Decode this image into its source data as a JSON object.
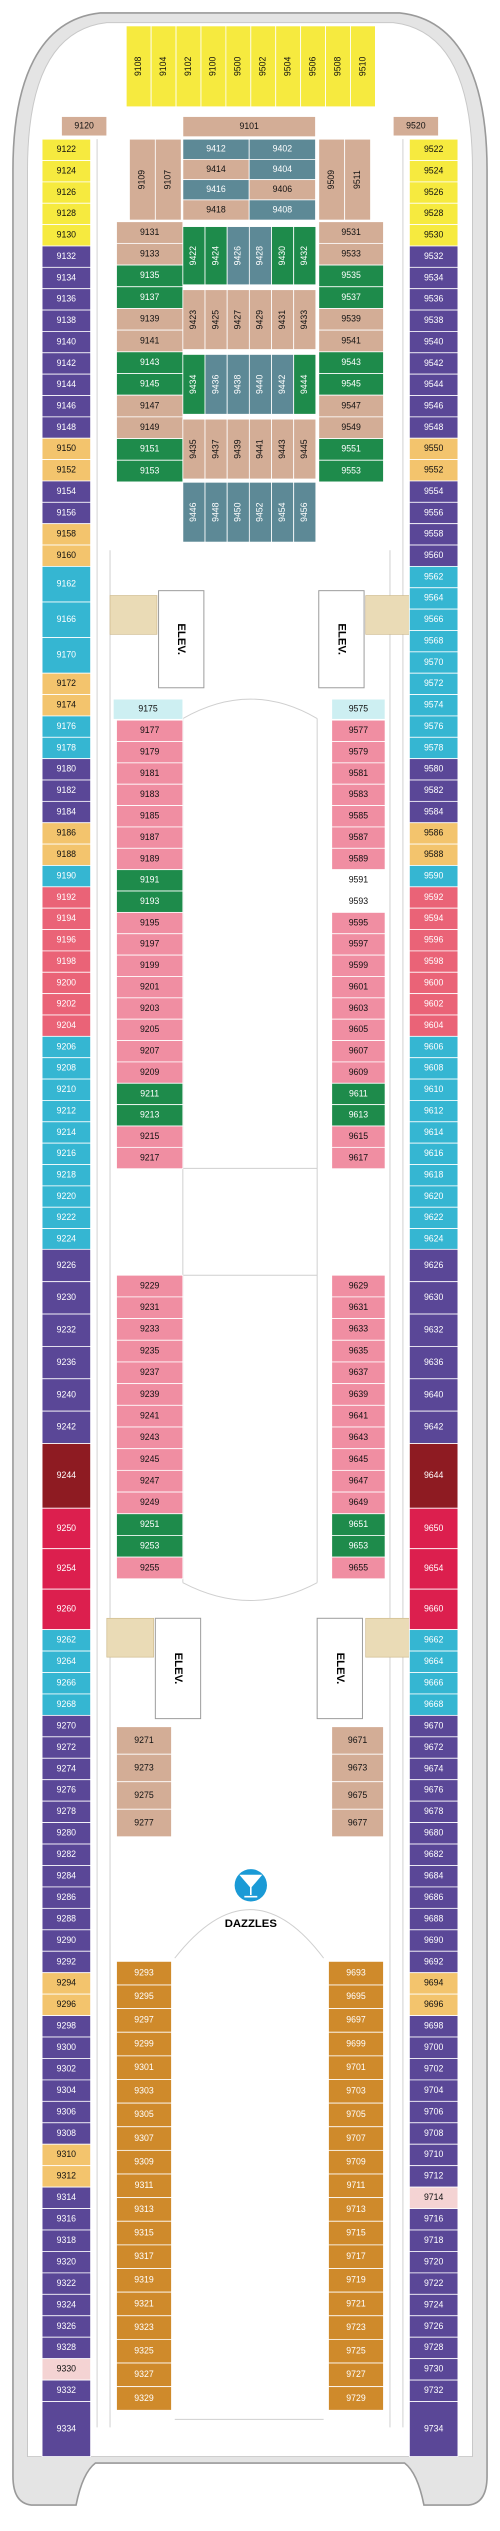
{
  "sections": [
    {
      "blocks": [
        {
          "color": "#f6ea3f",
          "cabins": [
            "9108",
            "9104",
            "9102",
            "9100",
            "9500",
            "9502",
            "9504",
            "9506",
            "9508",
            "9510"
          ]
        }
      ]
    },
    {
      "blocks": [
        {
          "color": "#d3ad96",
          "cabins": [
            "9120"
          ]
        }
      ]
    },
    {
      "blocks": [
        {
          "color": "#d3ad96",
          "cabins": [
            "9520"
          ]
        }
      ]
    },
    {
      "blocks": [
        {
          "color": "#d3ad96",
          "cabins": [
            "9101"
          ]
        }
      ]
    },
    {
      "blocks": [
        {
          "color": "#d3ad96",
          "cabins": [
            "9109",
            "9107"
          ]
        }
      ]
    },
    {
      "blocks": [
        {
          "color": "#d3ad96",
          "cabins": [
            "9509",
            "9511"
          ]
        }
      ]
    },
    {
      "blocks": [
        {
          "color": "#5d8996",
          "cabins": [
            "9412"
          ]
        },
        {
          "color": "#d3ad96",
          "cabins": [
            "9414"
          ]
        },
        {
          "color": "#5d8996",
          "cabins": [
            "9416"
          ]
        },
        {
          "color": "#d3ad96",
          "cabins": [
            "9418"
          ]
        }
      ]
    },
    {
      "blocks": [
        {
          "color": "#5d8996",
          "cabins": [
            "9402",
            "9404"
          ]
        },
        {
          "color": "#d3ad96",
          "cabins": [
            "9406"
          ]
        },
        {
          "color": "#5d8996",
          "cabins": [
            "9408"
          ]
        }
      ]
    },
    {
      "blocks": [
        {
          "color": "#d3ad96",
          "cabins": [
            "9131",
            "9133"
          ]
        },
        {
          "color": "#1e8b4b",
          "cabins": [
            "9135",
            "9137"
          ]
        },
        {
          "color": "#d3ad96",
          "cabins": [
            "9139",
            "9141"
          ]
        },
        {
          "color": "#1e8b4b",
          "cabins": [
            "9143",
            "9145"
          ]
        },
        {
          "color": "#d3ad96",
          "cabins": [
            "9147",
            "9149"
          ]
        },
        {
          "color": "#1e8b4b",
          "cabins": [
            "9151",
            "9153"
          ]
        }
      ]
    },
    {
      "blocks": [
        {
          "color": "#d3ad96",
          "cabins": [
            "9531",
            "9533"
          ]
        },
        {
          "color": "#1e8b4b",
          "cabins": [
            "9535",
            "9537"
          ]
        },
        {
          "color": "#d3ad96",
          "cabins": [
            "9539",
            "9541"
          ]
        },
        {
          "color": "#1e8b4b",
          "cabins": [
            "9543",
            "9545"
          ]
        },
        {
          "color": "#d3ad96",
          "cabins": [
            "9547",
            "9549"
          ]
        },
        {
          "color": "#1e8b4b",
          "cabins": [
            "9551",
            "9553"
          ]
        }
      ]
    },
    {
      "blocks": [
        {
          "color": "#1e8b4b",
          "cabins": [
            "9422",
            "9424"
          ]
        },
        {
          "color": "#5d8996",
          "cabins": [
            "9426",
            "9428"
          ]
        },
        {
          "color": "#1e8b4b",
          "cabins": [
            "9430",
            "9432"
          ]
        }
      ]
    },
    {
      "blocks": [
        {
          "color": "#d3ad96",
          "cabins": [
            "9423",
            "9425",
            "9427",
            "9429",
            "9431",
            "9433"
          ]
        }
      ]
    },
    {
      "blocks": [
        {
          "color": "#1e8b4b",
          "cabins": [
            "9434"
          ]
        },
        {
          "color": "#5d8996",
          "cabins": [
            "9436",
            "9438",
            "9440",
            "9442"
          ]
        },
        {
          "color": "#1e8b4b",
          "cabins": [
            "9444"
          ]
        }
      ]
    },
    {
      "blocks": [
        {
          "color": "#d3ad96",
          "cabins": [
            "9435",
            "9437",
            "9439",
            "9441",
            "9443",
            "9445"
          ]
        }
      ]
    },
    {
      "blocks": [
        {
          "color": "#5d8996",
          "cabins": [
            "9446",
            "9448",
            "9450",
            "9452",
            "9454",
            "9456"
          ]
        }
      ]
    },
    {
      "blocks": [
        {
          "color": "#f6ea3f",
          "cabins": [
            "9122",
            "9124",
            "9126",
            "9128",
            "9130"
          ]
        },
        {
          "color": "#5a4797",
          "cabins": [
            "9132",
            "9134",
            "9136",
            "9138",
            "9140",
            "9142",
            "9144",
            "9146",
            "9148"
          ]
        },
        {
          "color": "#f3c46d",
          "cabins": [
            "9150",
            "9152"
          ]
        },
        {
          "color": "#5a4797",
          "cabins": [
            "9154",
            "9156"
          ]
        },
        {
          "color": "#f3c46d",
          "cabins": [
            "9158",
            "9160"
          ]
        }
      ]
    },
    {
      "blocks": [
        {
          "color": "#35b6d2",
          "cabins": [
            "9162",
            "9166",
            "9170"
          ]
        }
      ]
    },
    {
      "blocks": [
        {
          "color": "#f3c46d",
          "cabins": [
            "9172",
            "9174"
          ]
        },
        {
          "color": "#35b6d2",
          "cabins": [
            "9176",
            "9178"
          ]
        },
        {
          "color": "#5a4797",
          "cabins": [
            "9180",
            "9182",
            "9184"
          ]
        },
        {
          "color": "#f3c46d",
          "cabins": [
            "9186",
            "9188"
          ]
        },
        {
          "color": "#35b6d2",
          "cabins": [
            "9190"
          ]
        },
        {
          "color": "#ea6377",
          "cabins": [
            "9192",
            "9194",
            "9196",
            "9198",
            "9200",
            "9202",
            "9204"
          ]
        },
        {
          "color": "#35b6d2",
          "cabins": [
            "9206",
            "9208",
            "9210",
            "9212",
            "9214",
            "9216",
            "9218",
            "9220",
            "9222",
            "9224"
          ]
        }
      ]
    },
    {
      "blocks": [
        {
          "color": "#5a4797",
          "cabins": [
            "9226",
            "9230",
            "9232",
            "9236",
            "9240",
            "9242"
          ]
        }
      ]
    },
    {
      "blocks": [
        {
          "color": "#8e1b22",
          "cabins": [
            "9244"
          ]
        }
      ]
    },
    {
      "blocks": [
        {
          "color": "#dc1f4e",
          "cabins": [
            "9250",
            "9254",
            "9260"
          ]
        }
      ]
    },
    {
      "blocks": [
        {
          "color": "#35b6d2",
          "cabins": [
            "9262",
            "9264",
            "9266",
            "9268"
          ]
        },
        {
          "color": "#5a4797",
          "cabins": [
            "9270",
            "9272",
            "9274",
            "9276",
            "9278",
            "9280",
            "9282",
            "9284",
            "9286",
            "9288",
            "9290",
            "9292"
          ]
        },
        {
          "color": "#f3c46d",
          "cabins": [
            "9294",
            "9296"
          ]
        },
        {
          "color": "#5a4797",
          "cabins": [
            "9298",
            "9300",
            "9302",
            "9304",
            "9306",
            "9308"
          ]
        },
        {
          "color": "#f3c46d",
          "cabins": [
            "9310",
            "9312"
          ]
        },
        {
          "color": "#5a4797",
          "cabins": [
            "9314",
            "9316",
            "9318",
            "9320",
            "9322",
            "9324",
            "9326",
            "9328"
          ]
        },
        {
          "color": "#f4d3d3",
          "cabins": [
            "9330"
          ]
        },
        {
          "color": "#5a4797",
          "cabins": [
            "9332"
          ]
        }
      ]
    },
    {
      "blocks": [
        {
          "color": "#5a4797",
          "cabins": [
            "9334"
          ]
        }
      ]
    },
    {
      "blocks": [
        {
          "color": "#f6ea3f",
          "cabins": [
            "9522",
            "9524",
            "9526",
            "9528",
            "9530"
          ]
        },
        {
          "color": "#5a4797",
          "cabins": [
            "9532",
            "9534",
            "9536",
            "9538",
            "9540",
            "9542",
            "9544",
            "9546",
            "9548"
          ]
        },
        {
          "color": "#f3c46d",
          "cabins": [
            "9550",
            "9552"
          ]
        },
        {
          "color": "#5a4797",
          "cabins": [
            "9554",
            "9556",
            "9558",
            "9560"
          ]
        }
      ]
    },
    {
      "blocks": [
        {
          "color": "#35b6d2",
          "cabins": [
            "9562",
            "9564",
            "9566",
            "9568",
            "9570",
            "9572",
            "9574",
            "9576",
            "9578"
          ]
        },
        {
          "color": "#5a4797",
          "cabins": [
            "9580",
            "9582",
            "9584"
          ]
        },
        {
          "color": "#f3c46d",
          "cabins": [
            "9586",
            "9588"
          ]
        },
        {
          "color": "#35b6d2",
          "cabins": [
            "9590"
          ]
        },
        {
          "color": "#ea6377",
          "cabins": [
            "9592",
            "9594",
            "9596",
            "9598",
            "9600",
            "9602",
            "9604"
          ]
        },
        {
          "color": "#35b6d2",
          "cabins": [
            "9606",
            "9608",
            "9610",
            "9612",
            "9614",
            "9616",
            "9618",
            "9620",
            "9622",
            "9624"
          ]
        }
      ]
    },
    {
      "blocks": [
        {
          "color": "#5a4797",
          "cabins": [
            "9626",
            "9630",
            "9632",
            "9636",
            "9640",
            "9642"
          ]
        }
      ]
    },
    {
      "blocks": [
        {
          "color": "#8e1b22",
          "cabins": [
            "9644"
          ]
        }
      ]
    },
    {
      "blocks": [
        {
          "color": "#dc1f4e",
          "cabins": [
            "9650",
            "9654",
            "9660"
          ]
        }
      ]
    },
    {
      "blocks": [
        {
          "color": "#35b6d2",
          "cabins": [
            "9662",
            "9664",
            "9666",
            "9668"
          ]
        },
        {
          "color": "#5a4797",
          "cabins": [
            "9670",
            "9672",
            "9674",
            "9676",
            "9678",
            "9680",
            "9682",
            "9684",
            "9686",
            "9688",
            "9690",
            "9692"
          ]
        },
        {
          "color": "#f3c46d",
          "cabins": [
            "9694",
            "9696"
          ]
        },
        {
          "color": "#5a4797",
          "cabins": [
            "9698",
            "9700",
            "9702",
            "9704",
            "9706",
            "9708",
            "9710",
            "9712"
          ]
        },
        {
          "color": "#f4d3d3",
          "cabins": [
            "9714"
          ]
        },
        {
          "color": "#5a4797",
          "cabins": [
            "9716",
            "9718",
            "9720",
            "9722",
            "9724",
            "9726",
            "9728",
            "9730",
            "9732"
          ]
        }
      ]
    },
    {
      "blocks": [
        {
          "color": "#5a4797",
          "cabins": [
            "9734"
          ]
        }
      ]
    },
    {
      "blocks": [
        {
          "color": "#cdeff2",
          "cabins": [
            "9175"
          ]
        }
      ]
    },
    {
      "blocks": [
        {
          "color": "#f08ea2",
          "cabins": [
            "9177",
            "9179",
            "9181",
            "9183",
            "9185",
            "9187",
            "9189"
          ]
        },
        {
          "color": "#1e8b4b",
          "cabins": [
            "9191",
            "9193"
          ]
        },
        {
          "color": "#f08ea2",
          "cabins": [
            "9195",
            "9197",
            "9199",
            "9201",
            "9203",
            "9205",
            "9207",
            "9209"
          ]
        },
        {
          "color": "#1e8b4b",
          "cabins": [
            "9211",
            "9213"
          ]
        },
        {
          "color": "#f08ea2",
          "cabins": [
            "9215",
            "9217"
          ]
        }
      ]
    },
    {
      "blocks": [
        {
          "color": "#cdeff2",
          "cabins": [
            "9575"
          ]
        }
      ]
    },
    {
      "blocks": [
        {
          "color": "#f08ea2",
          "cabins": [
            "9577",
            "9579",
            "9581",
            "9583",
            "9585",
            "9587",
            "9589"
          ]
        },
        {
          "color": "#ffffff",
          "cabins": [
            "9591",
            "9593"
          ]
        },
        {
          "color": "#f08ea2",
          "cabins": [
            "9595",
            "9597",
            "9599",
            "9601",
            "9603",
            "9605",
            "9607",
            "9609"
          ]
        },
        {
          "color": "#1e8b4b",
          "cabins": [
            "9611",
            "9613"
          ]
        },
        {
          "color": "#f08ea2",
          "cabins": [
            "9615",
            "9617"
          ]
        }
      ]
    },
    {
      "blocks": [
        {
          "color": "#f08ea2",
          "cabins": [
            "9229",
            "9231",
            "9233",
            "9235",
            "9237",
            "9239",
            "9241",
            "9243",
            "9245",
            "9247",
            "9249"
          ]
        },
        {
          "color": "#1e8b4b",
          "cabins": [
            "9251",
            "9253"
          ]
        },
        {
          "color": "#f08ea2",
          "cabins": [
            "9255"
          ]
        }
      ]
    },
    {
      "blocks": [
        {
          "color": "#f08ea2",
          "cabins": [
            "9629",
            "9631",
            "9633",
            "9635",
            "9637",
            "9639",
            "9641",
            "9643",
            "9645",
            "9647",
            "9649"
          ]
        },
        {
          "color": "#1e8b4b",
          "cabins": [
            "9651",
            "9653"
          ]
        },
        {
          "color": "#f08ea2",
          "cabins": [
            "9655"
          ]
        }
      ]
    },
    {
      "blocks": [
        {
          "color": "#d3ad96",
          "cabins": [
            "9271",
            "9273",
            "9275",
            "9277"
          ]
        }
      ]
    },
    {
      "blocks": [
        {
          "color": "#d3ad96",
          "cabins": [
            "9671",
            "9673",
            "9675",
            "9677"
          ]
        }
      ]
    },
    {
      "blocks": [
        {
          "color": "#cf8a2b",
          "cabins": [
            "9293",
            "9295",
            "9297",
            "9299",
            "9301",
            "9303",
            "9305",
            "9307",
            "9309",
            "9311",
            "9313",
            "9315",
            "9317",
            "9319",
            "9321",
            "9323",
            "9325",
            "9327",
            "9329"
          ]
        }
      ]
    },
    {
      "blocks": [
        {
          "color": "#cf8a2b",
          "cabins": [
            "9693",
            "9695",
            "9697",
            "9699",
            "9701",
            "9703",
            "9705",
            "9707",
            "9709",
            "9711",
            "9713",
            "9715",
            "9717",
            "9719",
            "9721",
            "9723",
            "9725",
            "9727",
            "9729"
          ]
        }
      ]
    }
  ],
  "elevators": [
    "ELEV.",
    "ELEV.",
    "ELEV.",
    "ELEV."
  ],
  "venue": "DAZZLES"
}
